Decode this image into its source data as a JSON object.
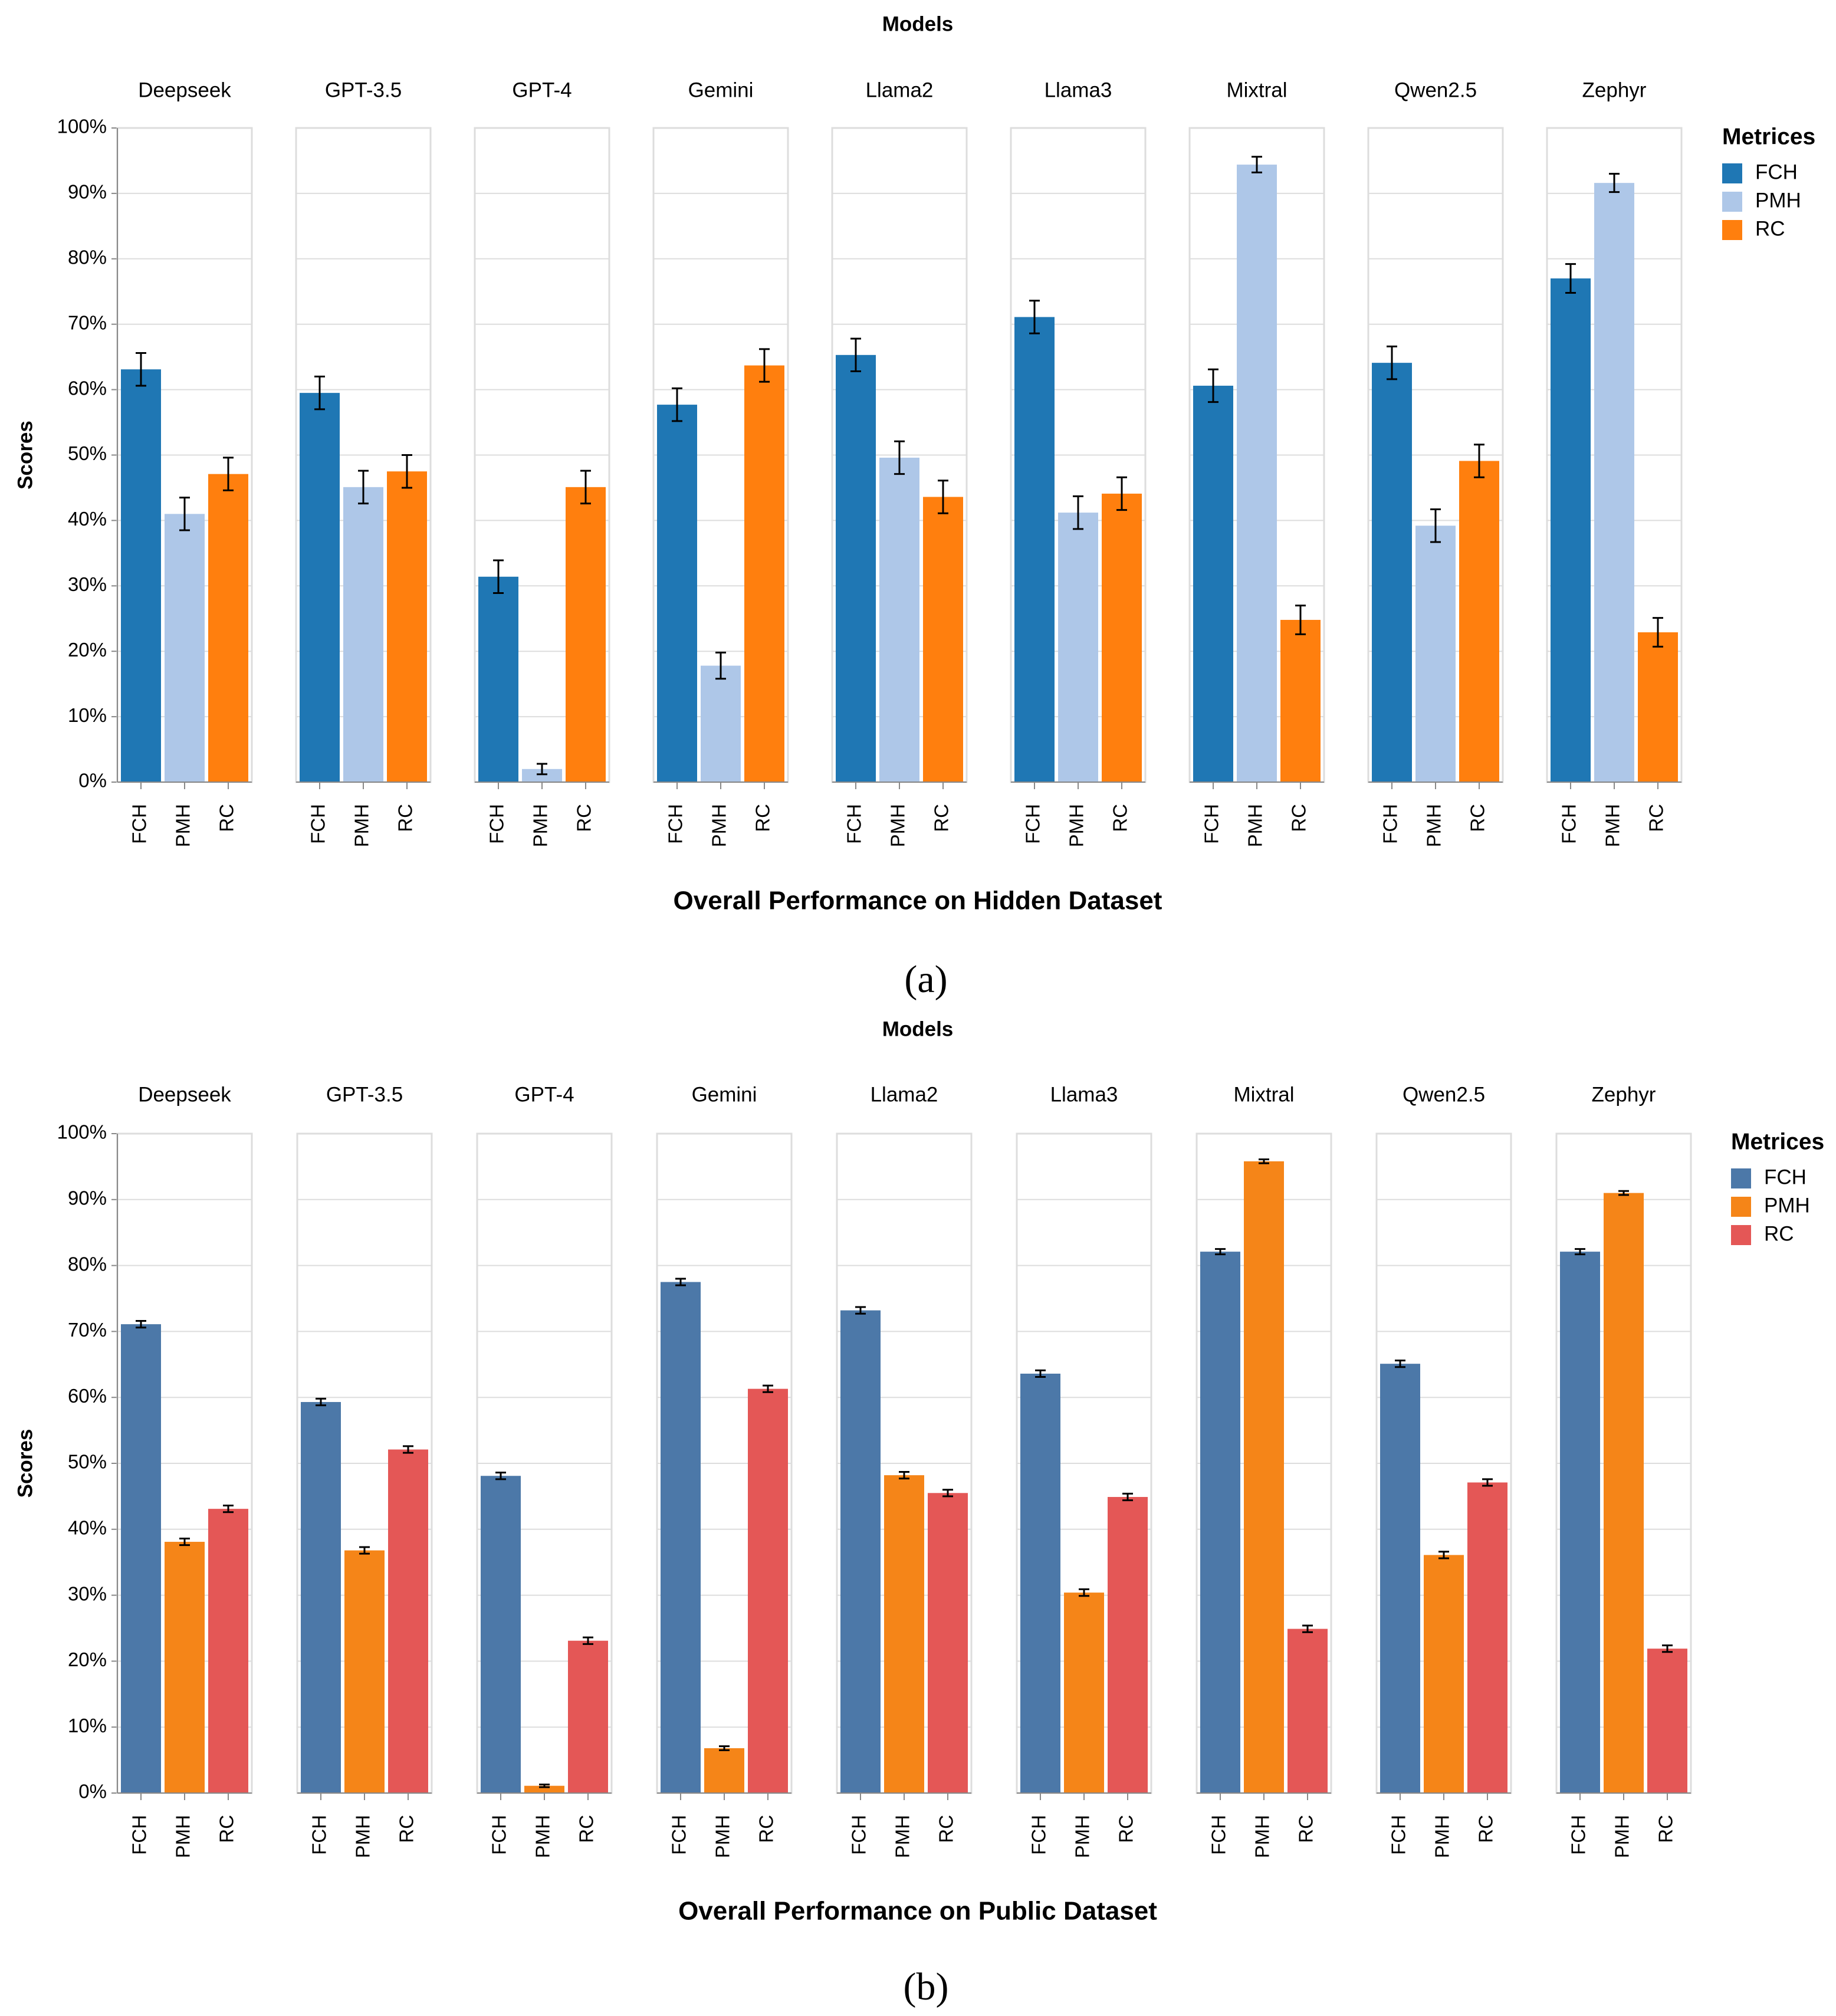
{
  "figure": {
    "panel_captions": [
      "(a)",
      "(b)"
    ],
    "shared_labels": {
      "facet_header": "Models",
      "y_axis_title": "Scores",
      "legend_title": "Metrices"
    }
  },
  "chart_data": [
    {
      "type": "bar",
      "panel": "a",
      "title": "Models",
      "xlabel": "Overall Performance on Hidden Dataset",
      "ylabel": "Scores",
      "ylim": [
        0,
        100
      ],
      "ytick_values": [
        0,
        10,
        20,
        30,
        40,
        50,
        60,
        70,
        80,
        90,
        100
      ],
      "ytick_labels": [
        "0%",
        "10%",
        "20%",
        "30%",
        "40%",
        "50%",
        "60%",
        "70%",
        "80%",
        "90%",
        "100%"
      ],
      "grid": true,
      "legend": {
        "title": "Metrices",
        "placement": "right",
        "entries": [
          {
            "label": "FCH",
            "color": "#1f77b4"
          },
          {
            "label": "PMH",
            "color": "#aec7e8"
          },
          {
            "label": "RC",
            "color": "#ff7f0e"
          }
        ]
      },
      "categories": [
        "FCH",
        "PMH",
        "RC"
      ],
      "facets": [
        {
          "model": "Deepseek",
          "values": [
            63.1,
            41.0,
            47.1
          ],
          "errors": [
            2.5,
            2.5,
            2.5
          ]
        },
        {
          "model": "GPT-3.5",
          "values": [
            59.5,
            45.1,
            47.5
          ],
          "errors": [
            2.5,
            2.5,
            2.5
          ]
        },
        {
          "model": "GPT-4",
          "values": [
            31.4,
            2.0,
            45.1
          ],
          "errors": [
            2.5,
            0.8,
            2.5
          ]
        },
        {
          "model": "Gemini",
          "values": [
            57.7,
            17.8,
            63.7
          ],
          "errors": [
            2.5,
            2.0,
            2.5
          ]
        },
        {
          "model": "Llama2",
          "values": [
            65.3,
            49.6,
            43.6
          ],
          "errors": [
            2.5,
            2.5,
            2.5
          ]
        },
        {
          "model": "Llama3",
          "values": [
            71.1,
            41.2,
            44.1
          ],
          "errors": [
            2.5,
            2.5,
            2.5
          ]
        },
        {
          "model": "Mixtral",
          "values": [
            60.6,
            94.4,
            24.8
          ],
          "errors": [
            2.5,
            1.2,
            2.2
          ]
        },
        {
          "model": "Qwen2.5",
          "values": [
            64.1,
            39.2,
            49.1
          ],
          "errors": [
            2.5,
            2.5,
            2.5
          ]
        },
        {
          "model": "Zephyr",
          "values": [
            77.0,
            91.6,
            22.9
          ],
          "errors": [
            2.2,
            1.4,
            2.2
          ]
        }
      ]
    },
    {
      "type": "bar",
      "panel": "b",
      "title": "Models",
      "xlabel": "Overall Performance on Public Dataset",
      "ylabel": "Scores",
      "ylim": [
        0,
        100
      ],
      "ytick_values": [
        0,
        10,
        20,
        30,
        40,
        50,
        60,
        70,
        80,
        90,
        100
      ],
      "ytick_labels": [
        "0%",
        "10%",
        "20%",
        "30%",
        "40%",
        "50%",
        "60%",
        "70%",
        "80%",
        "90%",
        "100%"
      ],
      "grid": true,
      "legend": {
        "title": "Metrices",
        "placement": "right",
        "entries": [
          {
            "label": "FCH",
            "color": "#4c78a8"
          },
          {
            "label": "PMH",
            "color": "#f58518"
          },
          {
            "label": "RC",
            "color": "#e45756"
          }
        ]
      },
      "categories": [
        "FCH",
        "PMH",
        "RC"
      ],
      "facets": [
        {
          "model": "Deepseek",
          "values": [
            71.1,
            38.1,
            43.1
          ],
          "errors": [
            0.5,
            0.5,
            0.5
          ]
        },
        {
          "model": "GPT-3.5",
          "values": [
            59.3,
            36.8,
            52.1
          ],
          "errors": [
            0.5,
            0.5,
            0.5
          ]
        },
        {
          "model": "GPT-4",
          "values": [
            48.1,
            1.1,
            23.1
          ],
          "errors": [
            0.5,
            0.2,
            0.5
          ]
        },
        {
          "model": "Gemini",
          "values": [
            77.5,
            6.8,
            61.3
          ],
          "errors": [
            0.5,
            0.3,
            0.5
          ]
        },
        {
          "model": "Llama2",
          "values": [
            73.2,
            48.2,
            45.5
          ],
          "errors": [
            0.5,
            0.5,
            0.5
          ]
        },
        {
          "model": "Llama3",
          "values": [
            63.6,
            30.4,
            44.9
          ],
          "errors": [
            0.5,
            0.5,
            0.5
          ]
        },
        {
          "model": "Mixtral",
          "values": [
            82.1,
            95.8,
            24.9
          ],
          "errors": [
            0.4,
            0.3,
            0.5
          ]
        },
        {
          "model": "Qwen2.5",
          "values": [
            65.1,
            36.1,
            47.1
          ],
          "errors": [
            0.5,
            0.5,
            0.5
          ]
        },
        {
          "model": "Zephyr",
          "values": [
            82.1,
            91.0,
            21.9
          ],
          "errors": [
            0.4,
            0.3,
            0.5
          ]
        }
      ]
    }
  ]
}
